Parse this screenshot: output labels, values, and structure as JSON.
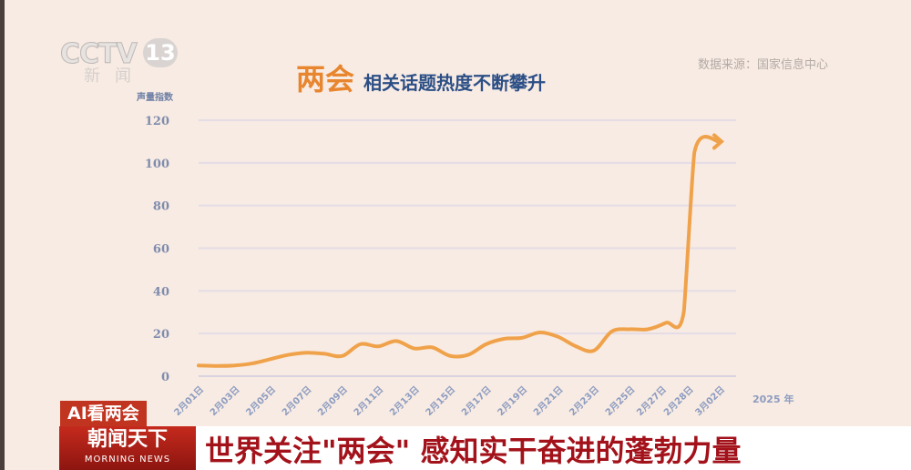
{
  "logo": {
    "main": "CCTV",
    "number": "13",
    "sub": "新闻"
  },
  "source": "数据来源：国家信息中心",
  "title": {
    "highlight": "两会",
    "rest": "相关话题热度不断攀升"
  },
  "tag": "AI看两会",
  "banner": {
    "show_cn": "朝闻天下",
    "show_en": "MORNING NEWS",
    "headline": "世界关注\"两会\" 感知实干奋进的蓬勃力量"
  },
  "colors": {
    "line": "#f0a24a",
    "title_highlight": "#e8862f",
    "title_text": "#2c4f86",
    "banner_red": "#c1341f",
    "headline": "#a3121a"
  },
  "chart_data": {
    "type": "line",
    "title": "两会 相关话题热度不断攀升",
    "ylabel": "声量指数",
    "xlabel": "2025 年",
    "ylim": [
      0,
      120
    ],
    "yticks": [
      0,
      20,
      40,
      60,
      80,
      100,
      120
    ],
    "grid": true,
    "xtick_labels": [
      "2月01日",
      "2月03日",
      "2月05日",
      "2月07日",
      "2月09日",
      "2月11日",
      "2月13日",
      "2月15日",
      "2月17日",
      "2月19日",
      "2月21日",
      "2月23日",
      "2月25日",
      "2月27日",
      "2月28日",
      "3月02日"
    ],
    "x": [
      "2月01日",
      "2月02日",
      "2月03日",
      "2月04日",
      "2月05日",
      "2月06日",
      "2月07日",
      "2月08日",
      "2月09日",
      "2月10日",
      "2月11日",
      "2月12日",
      "2月13日",
      "2月14日",
      "2月15日",
      "2月16日",
      "2月17日",
      "2月18日",
      "2月19日",
      "2月20日",
      "2月21日",
      "2月22日",
      "2月23日",
      "2月24日",
      "2月25日",
      "2月26日",
      "2月27日",
      "2月28日",
      "3月01日",
      "3月02日"
    ],
    "values": [
      5,
      4.8,
      5,
      6,
      8,
      10,
      11,
      10.5,
      9.5,
      15,
      14,
      16.5,
      13,
      13.5,
      9.5,
      10,
      15,
      17.5,
      18,
      20.5,
      18.5,
      14,
      12,
      21,
      22,
      22,
      25,
      30,
      105,
      110
    ],
    "end_marker": "arrow"
  }
}
